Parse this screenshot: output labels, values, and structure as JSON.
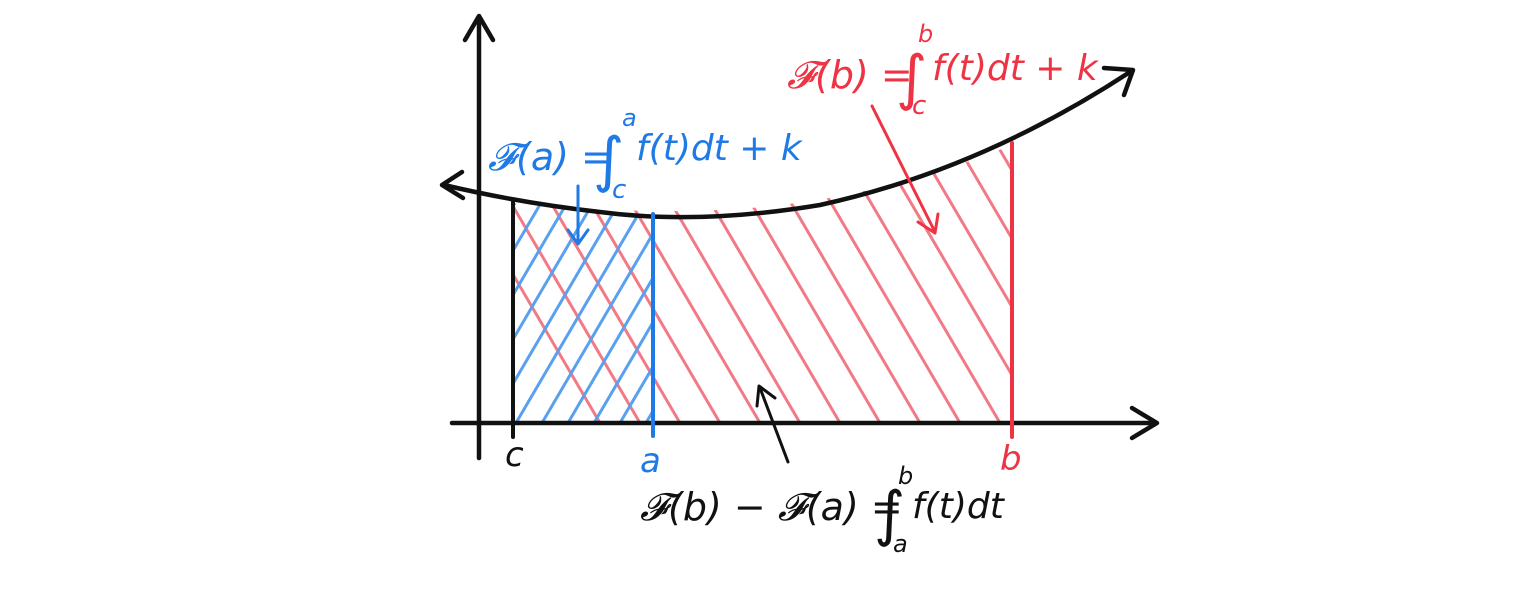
{
  "colors": {
    "ink": "#111111",
    "blue": "#1f7ae6",
    "blue_hatch": "#5aa0f0",
    "red": "#ee3344",
    "red_hatch": "#f27a86"
  },
  "labels": {
    "c": "c",
    "a": "a",
    "b": "b"
  },
  "eq_a": {
    "lhs": "𝓕(a) = ",
    "lower": "c",
    "upper": "a",
    "body": "f(t)dt + k"
  },
  "eq_b": {
    "lhs": "𝓕(b) = ",
    "lower": "c",
    "upper": "b",
    "body": "f(t)dt + k"
  },
  "eq_diff": {
    "lhs": "𝓕(b) − 𝓕(a) = ",
    "lower": "a",
    "upper": "b",
    "body": "f(t)dt"
  }
}
